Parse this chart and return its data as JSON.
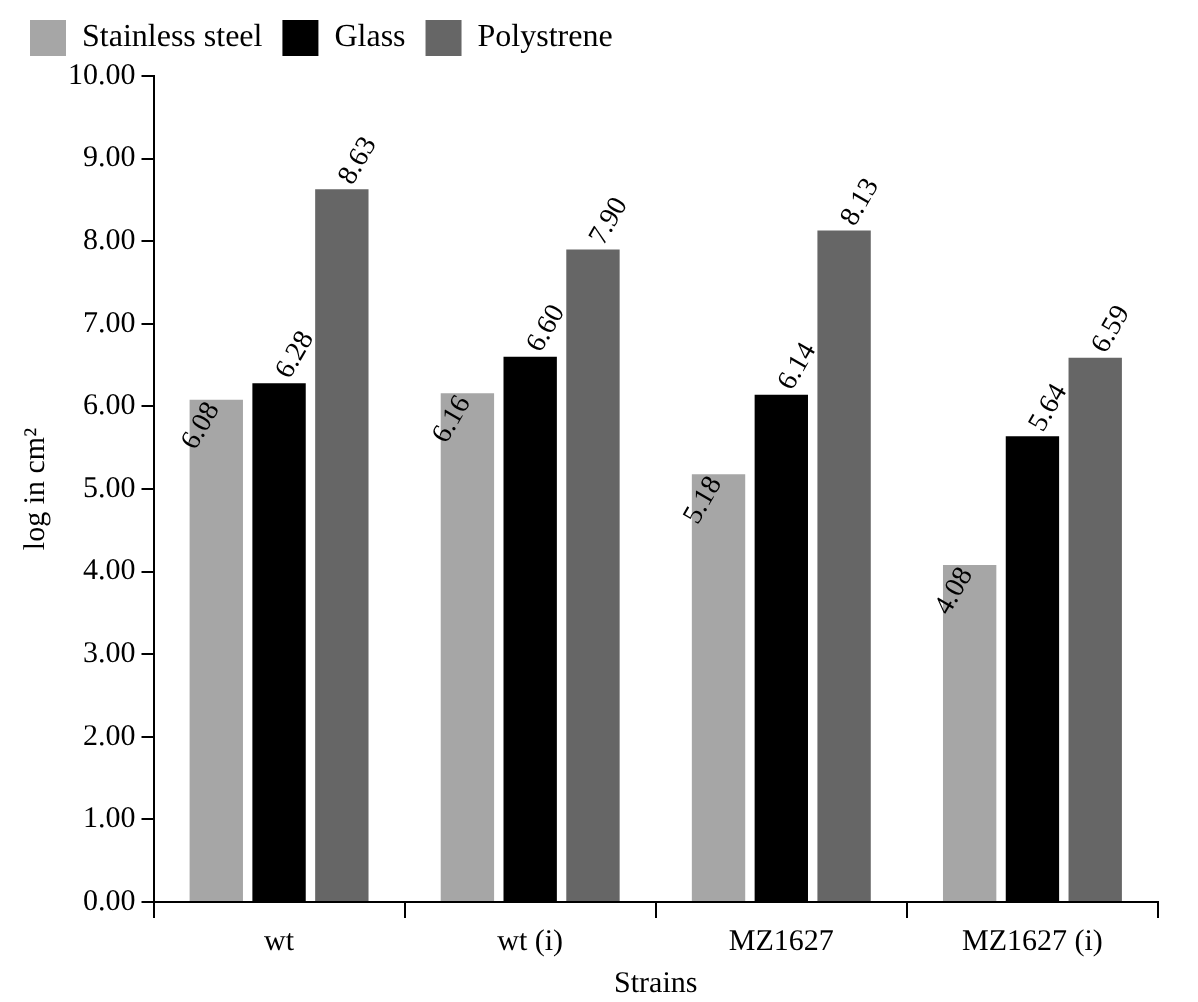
{
  "chart_data": {
    "type": "bar",
    "xlabel": "Strains",
    "ylabel": "log in cm²",
    "categories": [
      "wt",
      "wt (i)",
      "MZ1627",
      "MZ1627 (i)"
    ],
    "series": [
      {
        "name": "Stainless steel",
        "color": "#a6a6a6",
        "values": [
          6.08,
          6.16,
          5.18,
          4.08
        ],
        "value_labels": [
          "6.08",
          "6.16",
          "5.18",
          "4.08"
        ]
      },
      {
        "name": "Glass",
        "color": "#000000",
        "values": [
          6.28,
          6.6,
          6.14,
          5.64
        ],
        "value_labels": [
          "6.28",
          "6.60",
          "6.14",
          "5.64"
        ]
      },
      {
        "name": "Polystrene",
        "color": "#666666",
        "values": [
          8.63,
          7.9,
          8.13,
          6.59
        ],
        "value_labels": [
          "8.63",
          "7.90",
          "8.13",
          "6.59"
        ]
      }
    ],
    "ylim": [
      0,
      10
    ],
    "yticks": [
      {
        "value": 0,
        "label": "0.00"
      },
      {
        "value": 1,
        "label": "1.00"
      },
      {
        "value": 2,
        "label": "2.00"
      },
      {
        "value": 3,
        "label": "3.00"
      },
      {
        "value": 4,
        "label": "4.00"
      },
      {
        "value": 5,
        "label": "5.00"
      },
      {
        "value": 6,
        "label": "6.00"
      },
      {
        "value": 7,
        "label": "7.00"
      },
      {
        "value": 8,
        "label": "8.00"
      },
      {
        "value": 9,
        "label": "9.00"
      },
      {
        "value": 10,
        "label": "10.00"
      }
    ],
    "grid": false,
    "legend": "top"
  }
}
